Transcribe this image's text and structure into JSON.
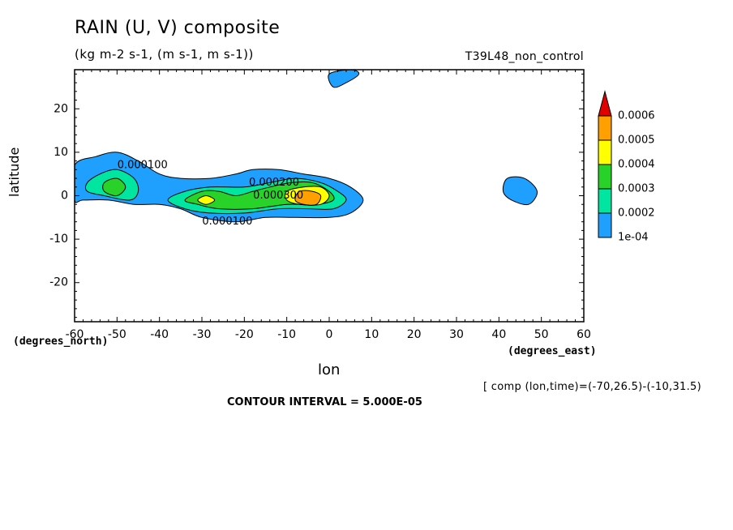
{
  "header": {
    "title": "RAIN (U, V) composite",
    "subtitle": "(kg m-2 s-1, (m s-1, m s-1))",
    "run_label": "T39L48_non_control"
  },
  "footer": {
    "comp_note": "[ comp (lon,time)=(-70,26.5)-(-10,31.5)",
    "contour_interval": "CONTOUR INTERVAL = 5.000E-05"
  },
  "chart_data": {
    "type": "contour",
    "title": "RAIN (U, V) composite",
    "subtitle": "(kg m-2 s-1, (m s-1, m s-1))",
    "xlabel": "lon",
    "ylabel": "latitude",
    "x_units": "(degrees_east)",
    "y_units": "(degrees_north)",
    "xlim": [
      -60,
      60
    ],
    "ylim": [
      -29,
      29
    ],
    "x_ticks": [
      -60,
      -50,
      -40,
      -30,
      -20,
      -10,
      0,
      10,
      20,
      30,
      40,
      50,
      60
    ],
    "y_ticks": [
      20,
      10,
      0,
      -10,
      -20
    ],
    "x_tick_labels": [
      "-60",
      "-50",
      "-40",
      "-30",
      "-20",
      "-10",
      "0",
      "10",
      "20",
      "30",
      "40",
      "50",
      "60"
    ],
    "y_tick_labels": [
      "20",
      "10",
      "0",
      "-10",
      "-20"
    ],
    "grid": false,
    "colorbar": {
      "placement": "right",
      "levels": [
        "1e-04",
        "0.0002",
        "0.0003",
        "0.0004",
        "0.0005",
        "0.0006"
      ],
      "colors": [
        "#1fa0ff",
        "#00e6a0",
        "#28d228",
        "#ffff00",
        "#ffa000",
        "#e10000"
      ]
    },
    "contour_labels": [
      {
        "text": "0.000100",
        "x": -44,
        "y": 7
      },
      {
        "text": "0.000100",
        "x": -24,
        "y": -6
      },
      {
        "text": "0.000200",
        "x": -13,
        "y": 3
      },
      {
        "text": "0.000300",
        "x": -12,
        "y": 0
      }
    ],
    "regions": [
      {
        "level": 1,
        "points": [
          [
            -60,
            7
          ],
          [
            -55,
            9
          ],
          [
            -50,
            10
          ],
          [
            -45,
            8
          ],
          [
            -40,
            5
          ],
          [
            -35,
            4
          ],
          [
            -28,
            4
          ],
          [
            -22,
            5
          ],
          [
            -18,
            6
          ],
          [
            -12,
            6
          ],
          [
            -6,
            5
          ],
          [
            0,
            4
          ],
          [
            5,
            2
          ],
          [
            8,
            -1
          ],
          [
            5,
            -4
          ],
          [
            0,
            -5
          ],
          [
            -8,
            -5
          ],
          [
            -15,
            -5
          ],
          [
            -22,
            -6
          ],
          [
            -30,
            -5
          ],
          [
            -35,
            -3
          ],
          [
            -40,
            -2
          ],
          [
            -46,
            -2
          ],
          [
            -52,
            -1
          ],
          [
            -58,
            -1
          ],
          [
            -60,
            -1
          ]
        ]
      },
      {
        "level": 1,
        "points": [
          [
            0,
            28
          ],
          [
            5,
            29
          ],
          [
            7,
            28
          ],
          [
            4,
            26
          ],
          [
            1,
            25
          ]
        ]
      },
      {
        "level": 1,
        "points": [
          [
            42,
            4
          ],
          [
            46,
            4
          ],
          [
            49,
            1
          ],
          [
            47,
            -2
          ],
          [
            43,
            -1
          ],
          [
            41,
            1
          ]
        ]
      },
      {
        "level": 2,
        "points": [
          [
            -57,
            3
          ],
          [
            -54,
            5
          ],
          [
            -50,
            6
          ],
          [
            -46,
            4
          ],
          [
            -45,
            1
          ],
          [
            -47,
            -1
          ],
          [
            -53,
            0
          ],
          [
            -57,
            1
          ]
        ]
      },
      {
        "level": 2,
        "points": [
          [
            -38,
            -1
          ],
          [
            -34,
            1
          ],
          [
            -28,
            2
          ],
          [
            -20,
            2
          ],
          [
            -14,
            3
          ],
          [
            -8,
            4
          ],
          [
            -2,
            3
          ],
          [
            2,
            1
          ],
          [
            4,
            -1
          ],
          [
            1,
            -3
          ],
          [
            -5,
            -3
          ],
          [
            -12,
            -3
          ],
          [
            -20,
            -4
          ],
          [
            -28,
            -4
          ],
          [
            -34,
            -3
          ]
        ]
      },
      {
        "level": 3,
        "points": [
          [
            -53,
            3
          ],
          [
            -50,
            4
          ],
          [
            -48,
            2
          ],
          [
            -50,
            0
          ],
          [
            -53,
            1
          ]
        ]
      },
      {
        "level": 3,
        "points": [
          [
            -34,
            -1
          ],
          [
            -30,
            1
          ],
          [
            -26,
            1
          ],
          [
            -22,
            0
          ],
          [
            -18,
            1
          ],
          [
            -14,
            2
          ],
          [
            -9,
            3
          ],
          [
            -4,
            3
          ],
          [
            0,
            1
          ],
          [
            1,
            -1
          ],
          [
            -3,
            -2
          ],
          [
            -10,
            -2
          ],
          [
            -18,
            -3
          ],
          [
            -26,
            -3
          ],
          [
            -31,
            -2
          ]
        ]
      },
      {
        "level": 4,
        "points": [
          [
            -31,
            -1
          ],
          [
            -29,
            0
          ],
          [
            -27,
            -1
          ],
          [
            -29,
            -2
          ]
        ]
      },
      {
        "level": 4,
        "points": [
          [
            -10,
            1
          ],
          [
            -6,
            2
          ],
          [
            -2,
            2
          ],
          [
            0,
            0
          ],
          [
            -2,
            -2
          ],
          [
            -7,
            -2
          ],
          [
            -10,
            -1
          ]
        ]
      },
      {
        "level": 5,
        "points": [
          [
            -7,
            1
          ],
          [
            -4,
            1
          ],
          [
            -2,
            0
          ],
          [
            -3,
            -2
          ],
          [
            -6,
            -2
          ],
          [
            -8,
            -1
          ]
        ]
      }
    ]
  }
}
